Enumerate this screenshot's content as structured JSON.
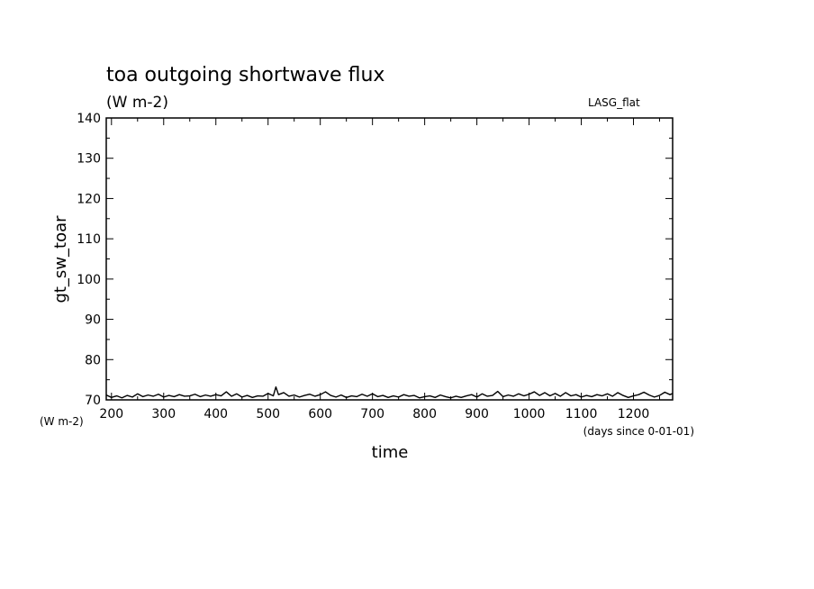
{
  "chart_data": {
    "type": "line",
    "title": "toa outgoing shortwave flux",
    "units": "(W m-2)",
    "annotation": "LASG_flat",
    "ylabel": "gt_sw_toar",
    "ylabel_units": "(W m-2)",
    "xlabel": "time",
    "xlabel_units": "(days since 0-01-01)",
    "xlim": [
      190,
      1275
    ],
    "ylim": [
      70,
      140
    ],
    "x_ticks": [
      200,
      300,
      400,
      500,
      600,
      700,
      800,
      900,
      1000,
      1100,
      1200
    ],
    "y_ticks": [
      70,
      80,
      90,
      100,
      110,
      120,
      130,
      140
    ],
    "grid": false,
    "series": [
      {
        "x": [
          190,
          200,
          210,
          220,
          230,
          240,
          250,
          260,
          270,
          280,
          290,
          300,
          310,
          320,
          330,
          340,
          350,
          360,
          370,
          380,
          390,
          400,
          410,
          420,
          430,
          440,
          450,
          460,
          470,
          480,
          490,
          500,
          510,
          515,
          520,
          530,
          540,
          550,
          560,
          570,
          580,
          590,
          600,
          610,
          620,
          630,
          640,
          650,
          660,
          670,
          680,
          690,
          700,
          710,
          720,
          730,
          740,
          750,
          760,
          770,
          780,
          790,
          800,
          810,
          820,
          830,
          840,
          850,
          860,
          870,
          880,
          890,
          900,
          910,
          920,
          930,
          940,
          950,
          960,
          970,
          980,
          990,
          1000,
          1010,
          1020,
          1030,
          1040,
          1050,
          1060,
          1070,
          1080,
          1090,
          1100,
          1110,
          1120,
          1130,
          1140,
          1150,
          1160,
          1170,
          1180,
          1190,
          1200,
          1210,
          1220,
          1230,
          1240,
          1250,
          1260,
          1270,
          1275
        ],
        "y": [
          71.2,
          70.6,
          71.0,
          70.5,
          71.1,
          70.7,
          71.5,
          70.8,
          71.2,
          70.9,
          71.4,
          70.7,
          71.1,
          70.8,
          71.3,
          70.9,
          71.0,
          71.4,
          70.8,
          71.2,
          70.9,
          71.3,
          71.0,
          72.0,
          70.9,
          71.5,
          70.7,
          71.1,
          70.6,
          71.0,
          70.9,
          71.6,
          71.0,
          73.2,
          71.3,
          71.8,
          70.9,
          71.2,
          70.7,
          71.1,
          71.4,
          70.9,
          71.3,
          72.0,
          71.1,
          70.7,
          71.2,
          70.6,
          71.0,
          70.8,
          71.4,
          70.9,
          71.5,
          70.8,
          71.1,
          70.6,
          71.0,
          70.7,
          71.3,
          70.9,
          71.1,
          70.5,
          70.8,
          71.0,
          70.6,
          71.2,
          70.8,
          70.5,
          70.9,
          70.6,
          71.0,
          71.3,
          70.7,
          71.5,
          70.9,
          71.1,
          72.1,
          70.8,
          71.2,
          70.9,
          71.5,
          71.0,
          71.4,
          72.0,
          71.1,
          71.8,
          71.0,
          71.6,
          70.9,
          71.8,
          71.0,
          71.3,
          70.7,
          71.1,
          70.8,
          71.3,
          71.0,
          71.5,
          70.9,
          71.8,
          71.1,
          70.6,
          71.0,
          71.3,
          71.9,
          71.2,
          70.7,
          71.1,
          71.9,
          71.3,
          71.6
        ]
      }
    ]
  }
}
